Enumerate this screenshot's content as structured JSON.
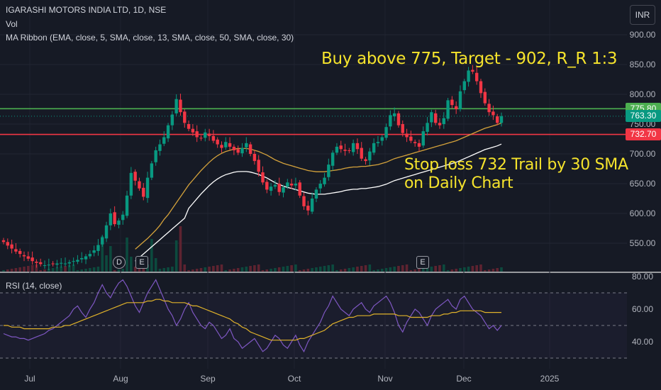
{
  "header": {
    "symbol_line": "IGARASHI MOTORS INDIA LTD, 1D, NSE",
    "volume_label": "Vol",
    "ma_ribbon_label": "MA Ribbon (EMA, close, 5, SMA, close, 13, SMA, close, 50, SMA, close, 30)",
    "currency_button": "INR"
  },
  "annotations": {
    "buy_note": "Buy above 775, Target - 902, R_R 1:3",
    "stop_note_line1": "Stop loss 732 Trail by 30 SMA",
    "stop_note_line2": "on Daily Chart"
  },
  "price_tags": [
    {
      "label": "775.80",
      "value": 775.8,
      "color": "#4caf50"
    },
    {
      "label": "763.30",
      "value": 763.3,
      "color": "#089981"
    },
    {
      "label": "732.70",
      "value": 732.7,
      "color": "#f23645"
    }
  ],
  "markers": {
    "dividend": "D",
    "earnings_1": "E",
    "earnings_2": "E"
  },
  "rsi": {
    "label": "RSI (14, close)"
  },
  "colors": {
    "up": "#089981",
    "down": "#f23645",
    "resistance_line": "#4caf50",
    "support_line": "#f23645",
    "ma_30": "#ffffff",
    "ma_50": "#d4a23b",
    "rsi_line": "#7e57c2",
    "rsi_ma": "#e0b22a",
    "annotation": "#f5e32c"
  },
  "chart_data": [
    {
      "type": "candlestick",
      "title": "IGARASHI MOTORS INDIA LTD, 1D, NSE",
      "x_ticks": [
        "Jul",
        "Aug",
        "Sep",
        "Oct",
        "Nov",
        "Dec",
        "2025"
      ],
      "y_ticks": [
        550,
        600,
        650,
        700,
        750,
        800,
        850,
        900
      ],
      "ylim": [
        515,
        915
      ],
      "horizontal_lines": [
        775.8,
        732.7
      ],
      "last_price": 763.3,
      "closes": [
        552,
        546,
        541,
        536,
        532,
        528,
        524,
        520,
        517,
        515,
        513,
        514,
        515,
        516,
        517,
        516,
        518,
        520,
        522,
        525,
        528,
        532,
        538,
        547,
        560,
        580,
        600,
        582,
        588,
        598,
        630,
        668,
        655,
        642,
        628,
        660,
        684,
        706,
        716,
        728,
        748,
        766,
        792,
        770,
        752,
        742,
        736,
        728,
        726,
        736,
        730,
        722,
        716,
        710,
        720,
        712,
        706,
        702,
        710,
        718,
        700,
        688,
        670,
        652,
        640,
        645,
        648,
        636,
        644,
        652,
        647,
        650,
        630,
        612,
        605,
        625,
        640,
        650,
        660,
        682,
        702,
        712,
        708,
        705,
        705,
        718,
        708,
        692,
        688,
        704,
        718,
        720,
        728,
        745,
        765,
        768,
        748,
        735,
        728,
        722,
        718,
        712,
        738,
        752,
        770,
        752,
        748,
        760,
        790,
        782,
        775,
        805,
        822,
        840,
        838,
        822,
        802,
        785,
        770,
        765,
        752,
        763.3
      ],
      "ma_50": [
        null,
        null,
        null,
        null,
        null,
        null,
        null,
        null,
        null,
        null,
        null,
        null,
        null,
        null,
        null,
        null,
        null,
        null,
        null,
        null,
        null,
        null,
        null,
        null,
        null,
        null,
        null,
        null,
        null,
        null,
        null,
        null,
        540,
        546,
        552,
        558,
        565,
        572,
        580,
        590,
        598,
        608,
        618,
        628,
        638,
        648,
        656,
        664,
        672,
        679,
        686,
        692,
        697,
        701,
        704,
        706,
        708,
        709,
        709,
        709,
        708,
        706,
        704,
        701,
        698,
        694,
        690,
        687,
        684,
        682,
        680,
        678,
        676,
        674,
        672,
        671,
        670,
        670,
        670,
        671,
        672,
        673,
        674,
        676,
        677,
        678,
        678,
        679,
        679,
        680,
        681,
        682,
        684,
        686,
        689,
        692,
        694,
        696,
        698,
        700,
        702,
        704,
        706,
        708,
        710,
        712,
        714,
        716,
        718,
        720,
        722,
        725,
        728,
        731,
        734,
        737,
        740,
        743,
        745,
        747,
        749,
        752
      ],
      "ma_30": [
        null,
        null,
        null,
        null,
        null,
        null,
        null,
        null,
        null,
        null,
        null,
        null,
        null,
        null,
        null,
        null,
        null,
        null,
        null,
        null,
        null,
        null,
        null,
        null,
        null,
        null,
        null,
        null,
        null,
        null,
        null,
        null,
        null,
        null,
        null,
        null,
        null,
        null,
        null,
        null,
        null,
        null,
        null,
        null,
        null,
        null,
        null,
        null,
        null,
        null,
        null,
        null,
        null,
        null,
        null,
        null,
        null,
        null,
        null,
        null,
        null,
        null,
        null,
        null,
        null,
        null,
        null,
        null,
        null,
        null,
        null,
        null,
        null,
        null,
        null,
        null,
        null,
        null,
        null,
        null,
        null,
        null,
        null,
        null,
        null,
        null,
        null,
        null,
        null,
        null,
        null,
        null,
        null,
        null,
        null,
        null,
        null,
        null,
        null,
        null,
        null,
        null,
        null,
        null,
        null,
        null,
        null,
        null,
        null,
        null,
        null,
        null,
        null,
        null,
        null,
        null,
        null,
        null,
        null,
        null,
        null,
        null
      ]
    },
    {
      "type": "line",
      "title": "RSI (14, close)",
      "y_ticks": [
        40,
        60,
        80
      ],
      "ylim": [
        31,
        85
      ],
      "bands": [
        70,
        50,
        30
      ],
      "rsi": [
        45,
        44,
        43,
        43,
        42,
        42,
        41,
        42,
        43,
        44,
        45,
        47,
        48,
        50,
        52,
        54,
        56,
        60,
        62,
        58,
        55,
        60,
        64,
        70,
        75,
        70,
        67,
        72,
        76,
        78,
        74,
        68,
        62,
        58,
        64,
        70,
        74,
        78,
        72,
        66,
        60,
        56,
        50,
        54,
        60,
        64,
        58,
        54,
        50,
        48,
        52,
        50,
        46,
        42,
        44,
        48,
        42,
        40,
        36,
        38,
        40,
        42,
        38,
        34,
        36,
        40,
        44,
        42,
        38,
        36,
        40,
        44,
        38,
        34,
        40,
        44,
        48,
        52,
        58,
        62,
        68,
        64,
        60,
        58,
        56,
        60,
        62,
        64,
        60,
        58,
        62,
        64,
        66,
        68,
        64,
        58,
        50,
        46,
        52,
        56,
        60,
        58,
        54,
        50,
        56,
        60,
        62,
        64,
        66,
        62,
        60,
        66,
        68,
        64,
        60,
        58,
        56,
        52,
        48,
        50,
        47,
        50
      ],
      "rsi_ma": [
        50,
        50,
        49,
        49,
        49,
        48,
        48,
        48,
        48,
        48,
        48,
        48,
        49,
        49,
        49,
        50,
        50,
        51,
        52,
        53,
        54,
        55,
        56,
        57,
        58,
        59,
        60,
        61,
        62,
        63,
        64,
        64,
        64,
        64,
        64,
        65,
        65,
        66,
        66,
        65,
        65,
        64,
        64,
        64,
        64,
        63,
        62,
        62,
        61,
        60,
        59,
        58,
        57,
        56,
        55,
        54,
        52,
        51,
        49,
        48,
        46,
        45,
        44,
        43,
        42,
        41,
        41,
        41,
        41,
        41,
        41,
        41,
        42,
        42,
        43,
        44,
        45,
        46,
        47,
        49,
        51,
        52,
        53,
        54,
        55,
        55,
        56,
        56,
        56,
        56,
        57,
        57,
        57,
        57,
        57,
        57,
        56,
        56,
        56,
        55,
        55,
        55,
        55,
        55,
        56,
        56,
        56,
        57,
        57,
        58,
        58,
        59,
        59,
        59,
        59,
        59,
        59,
        58,
        58,
        58,
        58,
        58
      ]
    }
  ]
}
